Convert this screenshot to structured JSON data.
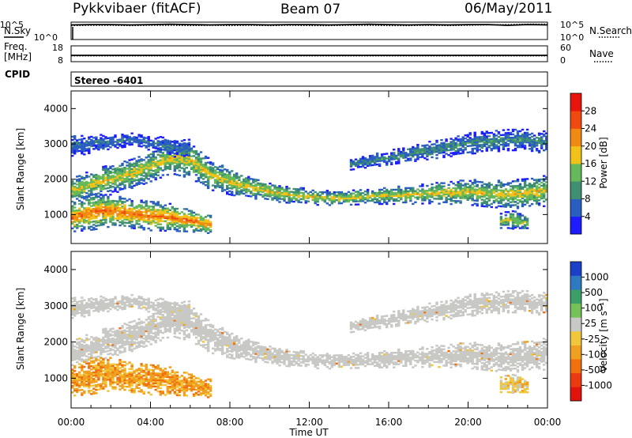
{
  "header": {
    "station": "Pykkvibaer (fitACF)",
    "beam": "Beam 07",
    "date": "06/May/2011"
  },
  "chart_data": [
    {
      "type": "line",
      "panel": "noise",
      "left_label": "N.Sky",
      "right_label": "N.Search",
      "left_ticks": [
        "10^5",
        "10^0"
      ],
      "right_ticks": [
        "10^5",
        "10^0"
      ],
      "series": [
        {
          "name": "N.Sky",
          "values": [
            4.2,
            4.3,
            4.3,
            4.2,
            4.3,
            4.4,
            4.3,
            4.2,
            4.3,
            4.3,
            4.2,
            4.3,
            4.3,
            4.2,
            4.3,
            4.4,
            4.3,
            4.2,
            4.3,
            4.2,
            4.3,
            4.3,
            4.1,
            4.3,
            4.2
          ]
        },
        {
          "name": "N.Search",
          "values": [
            4.0,
            4.1,
            4.1,
            4.0,
            4.1,
            4.1,
            4.0,
            4.1,
            4.0,
            4.1,
            4.0,
            4.1,
            4.0,
            4.0,
            4.1,
            4.1,
            4.0,
            4.0,
            4.1,
            4.0,
            4.1,
            4.2,
            4.3,
            4.4,
            4.4
          ]
        }
      ]
    },
    {
      "type": "line",
      "panel": "frequency",
      "left_label_1": "Freq.",
      "left_label_2": "[MHz]",
      "right_label": "Nave",
      "left_ticks": [
        "18",
        "8"
      ],
      "right_ticks": [
        "60",
        "0"
      ],
      "series": [
        {
          "name": "Freq.",
          "values": [
            12,
            12,
            12,
            12,
            12,
            12,
            12,
            12,
            12,
            12,
            12,
            12,
            12,
            12,
            12,
            12,
            12,
            12,
            12,
            12,
            12,
            12,
            12,
            12,
            12
          ]
        },
        {
          "name": "Nave",
          "values": [
            22,
            22,
            22,
            22,
            22,
            22,
            22,
            22,
            22,
            22,
            22,
            22,
            22,
            22,
            22,
            22,
            22,
            22,
            22,
            22,
            22,
            22,
            22,
            22,
            22
          ]
        }
      ]
    },
    {
      "type": "heatmap",
      "panel": "cpid",
      "label": "CPID",
      "value_text": "Stereo -6401"
    },
    {
      "type": "heatmap",
      "panel": "power",
      "ylabel": "Slant Range [km]",
      "ylim": [
        180,
        4500
      ],
      "yticks": [
        "1000",
        "2000",
        "3000",
        "4000"
      ],
      "colorbar_label": "Power [dB]",
      "colorbar_ticks": [
        "4",
        "8",
        "12",
        "16",
        "20",
        "24",
        "28"
      ],
      "colorbar_range": [
        0,
        32
      ],
      "colors": [
        "#1c1cff",
        "#2a5fc0",
        "#3f8f72",
        "#66b95a",
        "#f0c21a",
        "#f08a12",
        "#f04a10",
        "#e8140e"
      ],
      "bands": [
        {
          "name": "main",
          "times": [
            0,
            1,
            2,
            3,
            4,
            5,
            6,
            7,
            8,
            9,
            10,
            11,
            12,
            13,
            14,
            15,
            16,
            17,
            18,
            19,
            20,
            21,
            22,
            23,
            24
          ],
          "centers": [
            1650,
            1850,
            2000,
            2150,
            2350,
            2600,
            2500,
            2100,
            1900,
            1750,
            1620,
            1550,
            1480,
            1450,
            1460,
            1500,
            1520,
            1540,
            1580,
            1600,
            1620,
            1580,
            1550,
            1600,
            1680
          ],
          "widths": [
            350,
            400,
            420,
            420,
            420,
            450,
            500,
            420,
            360,
            300,
            260,
            240,
            220,
            200,
            200,
            220,
            240,
            260,
            280,
            320,
            360,
            380,
            400,
            420,
            450
          ],
          "level": 18
        },
        {
          "name": "near",
          "times": [
            0,
            1,
            2,
            3,
            4,
            5,
            6,
            7
          ],
          "centers": [
            900,
            1050,
            1100,
            1000,
            950,
            900,
            800,
            700
          ],
          "widths": [
            400,
            500,
            450,
            400,
            420,
            380,
            300,
            250
          ],
          "level": 24
        },
        {
          "name": "upper",
          "times": [
            0,
            1,
            2,
            3,
            4,
            5,
            6
          ],
          "centers": [
            2900,
            3000,
            3050,
            3100,
            3000,
            2900,
            2800
          ],
          "widths": [
            300,
            260,
            200,
            180,
            200,
            260,
            300
          ],
          "level": 8
        },
        {
          "name": "return",
          "times": [
            14,
            16,
            18,
            20,
            22,
            23,
            24
          ],
          "centers": [
            2400,
            2600,
            2800,
            3000,
            3100,
            3100,
            3000
          ],
          "widths": [
            150,
            200,
            250,
            300,
            300,
            300,
            320
          ],
          "level": 10
        },
        {
          "name": "evening",
          "times": [
            21.5,
            22,
            22.5,
            23
          ],
          "centers": [
            800,
            850,
            800,
            750
          ],
          "widths": [
            200,
            250,
            250,
            200
          ],
          "level": 16
        }
      ]
    },
    {
      "type": "heatmap",
      "panel": "velocity",
      "ylabel": "Slant Range [km]",
      "xlabel": "Time UT",
      "xticks": [
        "00:00",
        "04:00",
        "08:00",
        "12:00",
        "16:00",
        "20:00",
        "00:00"
      ],
      "xlim": [
        0,
        24
      ],
      "ylim": [
        180,
        4500
      ],
      "yticks": [
        "1000",
        "2000",
        "3000",
        "4000"
      ],
      "colorbar_label": "Velocity [m s⁻¹]",
      "colorbar_ticks": [
        "1000",
        "500",
        "100",
        "25",
        "-25",
        "-100",
        "-500",
        "-1000"
      ],
      "colors": [
        "#1c3fc8",
        "#2e7ac0",
        "#3aa068",
        "#76c25a",
        "#c8c8c4",
        "#f0c63a",
        "#f0a020",
        "#f07010",
        "#ec3a10",
        "#e0140c"
      ],
      "ground_color": "#c8c8c4",
      "bands": [
        {
          "name": "main",
          "level": "ground"
        },
        {
          "name": "near",
          "level": "-500"
        },
        {
          "name": "upper",
          "level": "ground"
        },
        {
          "name": "return",
          "level": "ground"
        },
        {
          "name": "evening",
          "level": "-100"
        }
      ]
    }
  ]
}
